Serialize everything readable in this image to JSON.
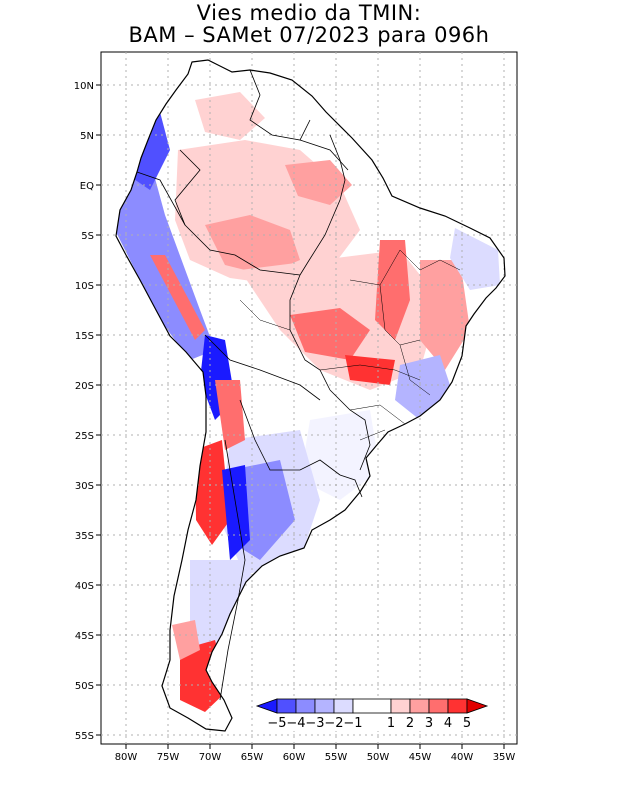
{
  "title": {
    "line1": "Vies medio da TMIN:",
    "line2": "BAM – SAMet 07/2023  para 096h"
  },
  "map": {
    "region": "South America",
    "variable": "Vies medio da TMIN",
    "model": "BAM",
    "reference": "SAMet",
    "period": "07/2023",
    "lead_time": "096h",
    "lon_range": [
      -83,
      -34
    ],
    "lat_range": [
      -56,
      13
    ],
    "lat_ticks": [
      "10N",
      "5N",
      "EQ",
      "5S",
      "10S",
      "15S",
      "20S",
      "25S",
      "30S",
      "35S",
      "40S",
      "45S",
      "50S",
      "55S"
    ],
    "lon_ticks": [
      "80W",
      "75W",
      "70W",
      "65W",
      "60W",
      "55W",
      "50W",
      "45W",
      "40W",
      "35W"
    ],
    "gridlines": true
  },
  "colorbar": {
    "labels": [
      "−5",
      "−4",
      "−3",
      "−2",
      "−1",
      "1",
      "2",
      "3",
      "4",
      "5"
    ],
    "colors": [
      "#1a1aff",
      "#5050ff",
      "#8c8cff",
      "#b4b4ff",
      "#dcdcff",
      "#ffffff",
      "#ffd2d2",
      "#ffa0a0",
      "#ff6e6e",
      "#ff3232",
      "#e00000"
    ]
  },
  "colors": {
    "strong_warm": "#ff3232",
    "warm": "#ffa0a0",
    "light_warm": "#ffd2d2",
    "light_cool": "#dcdcff",
    "cool": "#8c8cff",
    "strong_cool": "#1a1aff"
  }
}
